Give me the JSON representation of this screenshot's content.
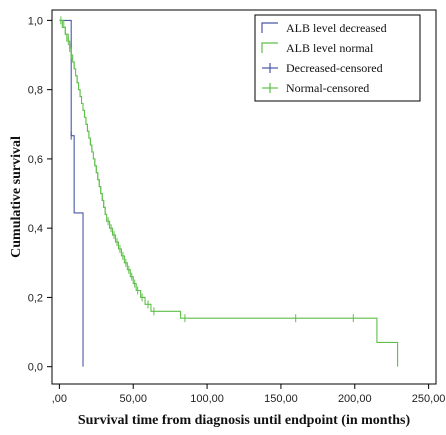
{
  "chart_data": {
    "type": "line",
    "title": "",
    "xlabel": "Survival time from diagnosis until endpoint (in months)",
    "ylabel": "Cumulative survival",
    "xlim": [
      -5,
      255
    ],
    "ylim": [
      -0.05,
      1.03
    ],
    "x_ticks": [
      0,
      50,
      100,
      150,
      200,
      250
    ],
    "x_tick_labels": [
      ",00",
      "50,00",
      "100,00",
      "150,00",
      "200,00",
      "250,00"
    ],
    "y_ticks": [
      0,
      0.2,
      0.4,
      0.6,
      0.8,
      1.0
    ],
    "y_tick_labels": [
      "0,0",
      "0,2",
      "0,4",
      "0,6",
      "0,8",
      "1,0"
    ],
    "legend_position": "top-right",
    "legend": [
      {
        "label": "ALB level decreased",
        "kind": "line",
        "color": "#4a57a8"
      },
      {
        "label": "ALB level normal",
        "kind": "line",
        "color": "#5fbf4a"
      },
      {
        "label": "Decreased-censored",
        "kind": "censor",
        "color": "#4a57a8"
      },
      {
        "label": "Normal-censored",
        "kind": "censor",
        "color": "#5fbf4a"
      }
    ],
    "series": [
      {
        "name": "ALB level decreased",
        "color": "#4a57a8",
        "steps": [
          [
            0,
            1.0
          ],
          [
            8,
            0.667
          ],
          [
            10,
            0.444
          ],
          [
            16,
            0.222
          ],
          [
            16,
            0.0
          ]
        ],
        "censored": [
          [
            8,
            0.667
          ]
        ]
      },
      {
        "name": "ALB level normal",
        "color": "#5fbf4a",
        "steps": [
          [
            0,
            1.0
          ],
          [
            2,
            0.98
          ],
          [
            4,
            0.96
          ],
          [
            6,
            0.94
          ],
          [
            7,
            0.92
          ],
          [
            8,
            0.9
          ],
          [
            9,
            0.88
          ],
          [
            10,
            0.86
          ],
          [
            11,
            0.84
          ],
          [
            12,
            0.82
          ],
          [
            13,
            0.8
          ],
          [
            14,
            0.78
          ],
          [
            15,
            0.76
          ],
          [
            16,
            0.74
          ],
          [
            17,
            0.72
          ],
          [
            18,
            0.7
          ],
          [
            19,
            0.68
          ],
          [
            20,
            0.66
          ],
          [
            21,
            0.64
          ],
          [
            22,
            0.62
          ],
          [
            23,
            0.6
          ],
          [
            24,
            0.58
          ],
          [
            25,
            0.56
          ],
          [
            26,
            0.54
          ],
          [
            27,
            0.52
          ],
          [
            28,
            0.5
          ],
          [
            29,
            0.48
          ],
          [
            30,
            0.46
          ],
          [
            31,
            0.44
          ],
          [
            32,
            0.42
          ],
          [
            34,
            0.4
          ],
          [
            36,
            0.38
          ],
          [
            38,
            0.36
          ],
          [
            40,
            0.34
          ],
          [
            42,
            0.32
          ],
          [
            44,
            0.3
          ],
          [
            46,
            0.28
          ],
          [
            48,
            0.26
          ],
          [
            50,
            0.24
          ],
          [
            52,
            0.22
          ],
          [
            55,
            0.2
          ],
          [
            58,
            0.18
          ],
          [
            62,
            0.16
          ],
          [
            82,
            0.14
          ],
          [
            215,
            0.07
          ],
          [
            229,
            0.0
          ]
        ],
        "end_x": 229,
        "censored": [
          [
            1,
            1.0
          ],
          [
            3,
            0.99
          ],
          [
            4,
            0.97
          ],
          [
            5,
            0.95
          ],
          [
            6,
            0.94
          ],
          [
            7,
            0.92
          ],
          [
            8,
            0.9
          ],
          [
            10,
            0.87
          ],
          [
            12,
            0.83
          ],
          [
            14,
            0.79
          ],
          [
            16,
            0.75
          ],
          [
            18,
            0.71
          ],
          [
            19,
            0.69
          ],
          [
            20,
            0.67
          ],
          [
            21,
            0.65
          ],
          [
            22,
            0.63
          ],
          [
            24,
            0.59
          ],
          [
            25,
            0.57
          ],
          [
            26,
            0.55
          ],
          [
            27,
            0.53
          ],
          [
            28,
            0.51
          ],
          [
            29,
            0.49
          ],
          [
            30,
            0.47
          ],
          [
            31,
            0.45
          ],
          [
            33,
            0.42
          ],
          [
            35,
            0.4
          ],
          [
            37,
            0.38
          ],
          [
            39,
            0.36
          ],
          [
            41,
            0.34
          ],
          [
            43,
            0.32
          ],
          [
            45,
            0.3
          ],
          [
            47,
            0.28
          ],
          [
            49,
            0.26
          ],
          [
            51,
            0.24
          ],
          [
            53,
            0.22
          ],
          [
            56,
            0.2
          ],
          [
            60,
            0.18
          ],
          [
            64,
            0.16
          ],
          [
            85,
            0.14
          ],
          [
            160,
            0.14
          ],
          [
            199,
            0.14
          ]
        ]
      }
    ]
  }
}
